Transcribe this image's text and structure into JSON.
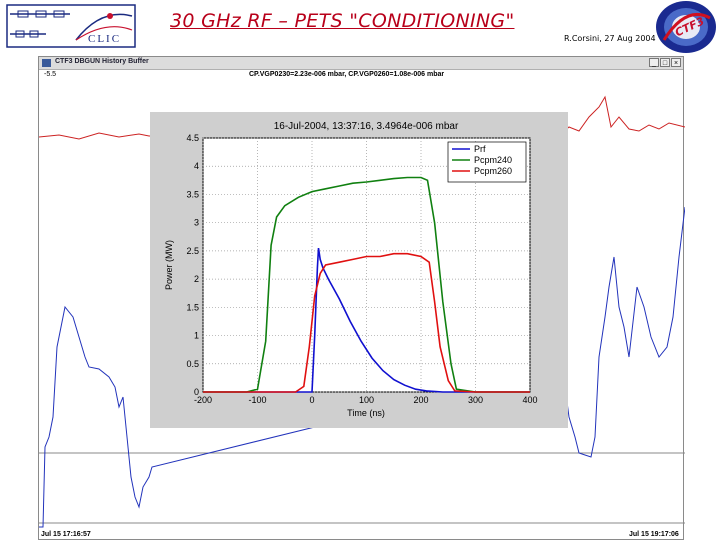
{
  "slide": {
    "title": "30 GHz RF – PETS \"CONDITIONING\"",
    "credit": "R.Corsini, 27 Aug 2004",
    "logo_left_text": "CLIC",
    "logo_right_text": "CTF3"
  },
  "window": {
    "title": "CTF3 DBGUN History Buffer",
    "buttons": [
      "_",
      "□",
      "×"
    ],
    "left_value": "-5.5",
    "header": "CP.VGP0230=2.23e-006 mbar,  CP.VGP0260=1.08e-006 mbar",
    "time_start": "Jul 15 17:16:57",
    "time_end": "Jul 15 19:17:06",
    "trace_colors": {
      "pressure_red": "#cc2222",
      "pressure_blue": "#2233bb"
    }
  },
  "chart_data": {
    "type": "line",
    "title": "16-Jul-2004, 13:37:16,  3.4964e-006 mbar",
    "xlabel": "Time (ns)",
    "ylabel": "Power (MW)",
    "xlim": [
      -200,
      400
    ],
    "ylim": [
      0,
      4.5
    ],
    "xticks": [
      -200,
      -100,
      0,
      100,
      200,
      300,
      400
    ],
    "xtick_labels": [
      "-200",
      "-100",
      "0",
      "100",
      "200",
      "300",
      "400"
    ],
    "yticks": [
      0,
      0.5,
      1,
      1.5,
      2,
      2.5,
      3,
      3.5,
      4,
      4.5
    ],
    "ytick_labels": [
      "0",
      "0.5",
      "1",
      "1.5",
      "2",
      "2.5",
      "3",
      "3.5",
      "4",
      "4.5"
    ],
    "legend_position": "top-right",
    "series": [
      {
        "name": "Prf",
        "color": "#1010d0",
        "x": [
          -200,
          0,
          5,
          10,
          12,
          15,
          20,
          30,
          50,
          70,
          90,
          110,
          130,
          150,
          170,
          190,
          210,
          240,
          300,
          400
        ],
        "y": [
          0,
          0,
          1.0,
          2.2,
          2.55,
          2.35,
          2.2,
          2.0,
          1.65,
          1.25,
          0.9,
          0.6,
          0.38,
          0.22,
          0.12,
          0.05,
          0.02,
          0,
          0,
          0
        ]
      },
      {
        "name": "Pcpm240",
        "color": "#108010",
        "x": [
          -200,
          -120,
          -100,
          -85,
          -75,
          -65,
          -50,
          -25,
          0,
          25,
          50,
          75,
          100,
          125,
          150,
          175,
          200,
          212,
          225,
          240,
          255,
          265,
          300,
          400
        ],
        "y": [
          0,
          0,
          0.05,
          0.9,
          2.6,
          3.1,
          3.3,
          3.45,
          3.55,
          3.6,
          3.65,
          3.7,
          3.72,
          3.75,
          3.78,
          3.8,
          3.8,
          3.75,
          3.0,
          1.6,
          0.5,
          0.05,
          0,
          0
        ]
      },
      {
        "name": "Pcpm260",
        "color": "#e01010",
        "x": [
          -200,
          -30,
          -15,
          -5,
          5,
          15,
          25,
          50,
          75,
          100,
          125,
          150,
          175,
          200,
          215,
          225,
          235,
          250,
          262,
          300,
          400
        ],
        "y": [
          0,
          0,
          0.1,
          0.8,
          1.7,
          2.1,
          2.25,
          2.3,
          2.35,
          2.4,
          2.4,
          2.45,
          2.45,
          2.4,
          2.3,
          1.6,
          0.8,
          0.2,
          0.02,
          0,
          0
        ]
      }
    ]
  }
}
